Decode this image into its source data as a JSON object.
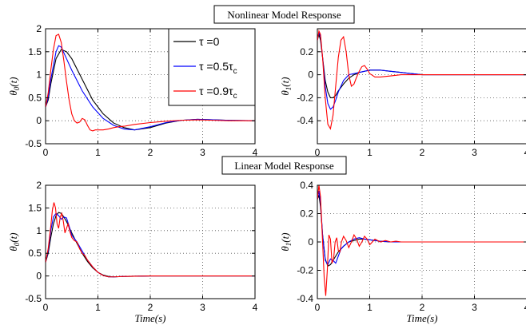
{
  "titles": {
    "top": "Nonlinear Model Response",
    "bottom": "Linear Model Response"
  },
  "legend": {
    "entries": [
      {
        "label": "τ =0",
        "color": "#000000"
      },
      {
        "label": "τ =0.5τ",
        "sub": "c",
        "color": "#0000ff"
      },
      {
        "label": "τ =0.9τ",
        "sub": "c",
        "color": "#ff0000"
      }
    ]
  },
  "chart_data": [
    {
      "id": "nonlinear-theta0",
      "type": "line",
      "title": "Nonlinear Model Response",
      "ylabel": "θ0(t)",
      "ylabel_main": "θ",
      "ylabel_sub": "0",
      "ylabel_tail": "(t)",
      "xlabel": "",
      "xlim": [
        0,
        4
      ],
      "ylim": [
        -0.5,
        2
      ],
      "xticks": [
        0,
        1,
        2,
        3,
        4
      ],
      "xticklabels": [
        "0",
        "1",
        "2",
        "3",
        "4"
      ],
      "yticks": [
        -0.5,
        0,
        0.5,
        1,
        1.5,
        2
      ],
      "yticklabels": [
        "-0.5",
        "0",
        "0.5",
        "1",
        "1.5",
        "2"
      ],
      "grid": true,
      "series": [
        {
          "name": "τ =0",
          "color": "#000000",
          "x": [
            0,
            0.05,
            0.1,
            0.2,
            0.3,
            0.4,
            0.5,
            0.7,
            0.9,
            1.1,
            1.3,
            1.5,
            1.7,
            2.0,
            2.3,
            2.6,
            2.9,
            3.2,
            3.5,
            4.0
          ],
          "y": [
            0.3,
            0.45,
            0.8,
            1.35,
            1.55,
            1.5,
            1.35,
            0.9,
            0.45,
            0.15,
            -0.05,
            -0.15,
            -0.2,
            -0.15,
            -0.05,
            0.01,
            0.03,
            0.02,
            0.01,
            0.0
          ]
        },
        {
          "name": "τ =0.5τc",
          "color": "#0000ff",
          "x": [
            0,
            0.05,
            0.1,
            0.2,
            0.25,
            0.3,
            0.4,
            0.5,
            0.7,
            0.9,
            1.1,
            1.3,
            1.5,
            1.7,
            2.0,
            2.3,
            2.6,
            2.9,
            3.2,
            3.5,
            4.0
          ],
          "y": [
            0.3,
            0.5,
            0.9,
            1.5,
            1.63,
            1.6,
            1.35,
            1.1,
            0.65,
            0.3,
            0.05,
            -0.1,
            -0.18,
            -0.2,
            -0.13,
            -0.04,
            0.01,
            0.03,
            0.02,
            0.01,
            0.0
          ]
        },
        {
          "name": "τ =0.9τc",
          "color": "#ff0000",
          "x": [
            0,
            0.05,
            0.1,
            0.15,
            0.2,
            0.25,
            0.3,
            0.35,
            0.4,
            0.45,
            0.5,
            0.55,
            0.6,
            0.65,
            0.7,
            0.75,
            0.8,
            0.85,
            0.9,
            0.95,
            1.0,
            1.1,
            1.2,
            1.3,
            1.4,
            1.5,
            1.7,
            2.0,
            2.3,
            2.6,
            2.9,
            3.2,
            3.5,
            4.0
          ],
          "y": [
            0.3,
            0.6,
            1.1,
            1.55,
            1.85,
            1.88,
            1.7,
            1.3,
            0.85,
            0.45,
            0.15,
            0.0,
            -0.05,
            -0.03,
            0.05,
            0.02,
            -0.1,
            -0.2,
            -0.22,
            -0.2,
            -0.2,
            -0.2,
            -0.18,
            -0.15,
            -0.13,
            -0.12,
            -0.08,
            -0.04,
            -0.01,
            0.01,
            0.02,
            0.01,
            0.0,
            0.0
          ]
        }
      ]
    },
    {
      "id": "nonlinear-theta1",
      "type": "line",
      "title": "Nonlinear Model Response",
      "ylabel": "θ1(t)",
      "ylabel_main": "θ",
      "ylabel_sub": "1",
      "ylabel_tail": "(t)",
      "xlabel": "",
      "xlim": [
        0,
        4
      ],
      "ylim": [
        -0.6,
        0.4
      ],
      "xticks": [
        0,
        1,
        2,
        3,
        4
      ],
      "xticklabels": [
        "0",
        "1",
        "2",
        "3",
        "4"
      ],
      "yticks": [
        -0.4,
        -0.2,
        0,
        0.2
      ],
      "yticklabels": [
        "-0.4",
        "-0.2",
        "0",
        "0.2"
      ],
      "grid": true,
      "series": [
        {
          "name": "τ =0",
          "color": "#000000",
          "x": [
            0,
            0.03,
            0.06,
            0.1,
            0.15,
            0.2,
            0.25,
            0.3,
            0.35,
            0.4,
            0.5,
            0.6,
            0.7,
            0.8,
            1.0,
            1.2,
            1.4,
            1.6,
            1.8,
            2.0,
            2.5,
            3.0,
            3.5,
            4.0
          ],
          "y": [
            0.3,
            0.35,
            0.3,
            0.15,
            -0.05,
            -0.15,
            -0.2,
            -0.2,
            -0.18,
            -0.14,
            -0.08,
            -0.03,
            0.0,
            0.02,
            0.04,
            0.04,
            0.03,
            0.02,
            0.01,
            0.0,
            0.0,
            0.0,
            0.0,
            0.0
          ]
        },
        {
          "name": "τ =0.5τc",
          "color": "#0000ff",
          "x": [
            0,
            0.03,
            0.06,
            0.1,
            0.15,
            0.2,
            0.25,
            0.3,
            0.35,
            0.4,
            0.5,
            0.6,
            0.7,
            0.8,
            1.0,
            1.2,
            1.4,
            1.6,
            1.8,
            2.0,
            2.5,
            3.0,
            3.5,
            4.0
          ],
          "y": [
            0.3,
            0.37,
            0.33,
            0.15,
            -0.1,
            -0.25,
            -0.3,
            -0.28,
            -0.22,
            -0.15,
            -0.05,
            0.0,
            0.01,
            0.02,
            0.04,
            0.04,
            0.03,
            0.02,
            0.01,
            0.0,
            0.0,
            0.0,
            0.0,
            0.0
          ]
        },
        {
          "name": "τ =0.9τc",
          "color": "#ff0000",
          "x": [
            0,
            0.03,
            0.06,
            0.1,
            0.15,
            0.2,
            0.25,
            0.3,
            0.35,
            0.4,
            0.45,
            0.5,
            0.55,
            0.6,
            0.65,
            0.7,
            0.75,
            0.8,
            0.85,
            0.9,
            0.95,
            1.0,
            1.1,
            1.2,
            1.4,
            1.6,
            1.8,
            2.0,
            2.5,
            3.0,
            3.5,
            4.0
          ],
          "y": [
            0.3,
            0.38,
            0.35,
            0.15,
            -0.2,
            -0.43,
            -0.47,
            -0.35,
            -0.1,
            0.15,
            0.3,
            0.33,
            0.2,
            0.0,
            -0.1,
            -0.08,
            -0.02,
            0.03,
            0.07,
            0.08,
            0.05,
            0.01,
            -0.02,
            -0.02,
            -0.01,
            0.0,
            0.0,
            0.0,
            0.0,
            0.0,
            0.0,
            0.0
          ]
        }
      ]
    },
    {
      "id": "linear-theta0",
      "type": "line",
      "title": "Linear Model Response",
      "ylabel": "θ0(t)",
      "ylabel_main": "θ",
      "ylabel_sub": "0",
      "ylabel_tail": "(t)",
      "xlabel": "Time(s)",
      "xlim": [
        0,
        4
      ],
      "ylim": [
        -0.5,
        2
      ],
      "xticks": [
        0,
        1,
        2,
        3,
        4
      ],
      "xticklabels": [
        "0",
        "1",
        "2",
        "3",
        "4"
      ],
      "yticks": [
        -0.5,
        0,
        0.5,
        1,
        1.5,
        2
      ],
      "yticklabels": [
        "-0.5",
        "0",
        "0.5",
        "1",
        "1.5",
        "2"
      ],
      "grid": true,
      "series": [
        {
          "name": "τ =0",
          "color": "#000000",
          "x": [
            0,
            0.05,
            0.1,
            0.15,
            0.2,
            0.25,
            0.3,
            0.35,
            0.4,
            0.5,
            0.6,
            0.7,
            0.8,
            0.9,
            1.0,
            1.1,
            1.2,
            1.3,
            1.5,
            2.0,
            2.5,
            3.0,
            4.0
          ],
          "y": [
            0.3,
            0.5,
            0.85,
            1.15,
            1.33,
            1.4,
            1.38,
            1.3,
            1.2,
            0.95,
            0.72,
            0.5,
            0.32,
            0.18,
            0.08,
            0.02,
            -0.01,
            -0.02,
            -0.01,
            0.0,
            0.0,
            0.0,
            0.0
          ]
        },
        {
          "name": "τ =0.5τc",
          "color": "#0000ff",
          "x": [
            0,
            0.05,
            0.1,
            0.15,
            0.2,
            0.25,
            0.3,
            0.35,
            0.4,
            0.45,
            0.5,
            0.6,
            0.7,
            0.8,
            0.9,
            1.0,
            1.1,
            1.2,
            1.3,
            1.5,
            2.0,
            2.5,
            3.0,
            4.0
          ],
          "y": [
            0.3,
            0.55,
            1.0,
            1.3,
            1.38,
            1.33,
            1.25,
            1.3,
            1.28,
            1.1,
            0.9,
            0.75,
            0.55,
            0.35,
            0.2,
            0.08,
            0.01,
            -0.02,
            -0.02,
            -0.01,
            0.0,
            0.0,
            0.0,
            0.0
          ]
        },
        {
          "name": "τ =0.9τc",
          "color": "#ff0000",
          "x": [
            0,
            0.05,
            0.1,
            0.13,
            0.16,
            0.19,
            0.22,
            0.25,
            0.28,
            0.31,
            0.34,
            0.37,
            0.4,
            0.43,
            0.46,
            0.5,
            0.55,
            0.6,
            0.65,
            0.7,
            0.75,
            0.8,
            0.9,
            1.0,
            1.1,
            1.2,
            1.3,
            1.5,
            2.0,
            2.5,
            3.0,
            4.0
          ],
          "y": [
            0.3,
            0.6,
            1.1,
            1.45,
            1.62,
            1.5,
            1.15,
            1.05,
            1.3,
            1.38,
            1.2,
            0.95,
            1.05,
            1.15,
            1.0,
            0.85,
            0.78,
            0.75,
            0.6,
            0.5,
            0.45,
            0.35,
            0.2,
            0.08,
            0.01,
            -0.02,
            -0.02,
            -0.01,
            0.0,
            0.0,
            0.0,
            0.0
          ]
        }
      ]
    },
    {
      "id": "linear-theta1",
      "type": "line",
      "title": "Linear Model Response",
      "ylabel": "θ1(t)",
      "ylabel_main": "θ",
      "ylabel_sub": "1",
      "ylabel_tail": "(t)",
      "xlabel": "Time(s)",
      "xlim": [
        0,
        4
      ],
      "ylim": [
        -0.4,
        0.4
      ],
      "xticks": [
        0,
        1,
        2,
        3,
        4
      ],
      "xticklabels": [
        "0",
        "1",
        "2",
        "3",
        "4"
      ],
      "yticks": [
        -0.4,
        -0.2,
        0,
        0.2,
        0.4
      ],
      "yticklabels": [
        "-0.4",
        "-0.2",
        "0",
        "0.2",
        "0.4"
      ],
      "grid": true,
      "series": [
        {
          "name": "τ =0",
          "color": "#000000",
          "x": [
            0,
            0.03,
            0.06,
            0.1,
            0.15,
            0.2,
            0.25,
            0.3,
            0.35,
            0.4,
            0.5,
            0.6,
            0.7,
            0.8,
            0.9,
            1.0,
            1.1,
            1.2,
            1.4,
            1.6,
            2.0,
            2.5,
            3.0,
            4.0
          ],
          "y": [
            0.3,
            0.33,
            0.25,
            0.05,
            -0.12,
            -0.17,
            -0.16,
            -0.13,
            -0.1,
            -0.07,
            -0.03,
            0.0,
            0.01,
            0.02,
            0.02,
            0.015,
            0.01,
            0.005,
            0.0,
            0.0,
            0.0,
            0.0,
            0.0,
            0.0
          ]
        },
        {
          "name": "τ =0.5τc",
          "color": "#0000ff",
          "x": [
            0,
            0.03,
            0.06,
            0.1,
            0.15,
            0.2,
            0.25,
            0.3,
            0.35,
            0.4,
            0.45,
            0.5,
            0.6,
            0.7,
            0.8,
            0.9,
            1.0,
            1.1,
            1.2,
            1.4,
            1.6,
            2.0,
            2.5,
            3.0,
            4.0
          ],
          "y": [
            0.3,
            0.36,
            0.28,
            0.05,
            -0.13,
            -0.16,
            -0.12,
            -0.13,
            -0.15,
            -0.1,
            -0.05,
            -0.03,
            0.0,
            0.02,
            0.03,
            0.02,
            0.015,
            0.01,
            0.005,
            0.0,
            0.0,
            0.0,
            0.0,
            0.0,
            0.0
          ]
        },
        {
          "name": "τ =0.9τc",
          "color": "#ff0000",
          "x": [
            0,
            0.03,
            0.06,
            0.1,
            0.13,
            0.16,
            0.19,
            0.22,
            0.25,
            0.28,
            0.31,
            0.34,
            0.37,
            0.4,
            0.43,
            0.46,
            0.5,
            0.55,
            0.6,
            0.65,
            0.7,
            0.75,
            0.8,
            0.85,
            0.9,
            0.95,
            1.0,
            1.1,
            1.2,
            1.3,
            1.4,
            1.5,
            1.6,
            1.8,
            2.0,
            2.5,
            3.0,
            4.0
          ],
          "y": [
            0.3,
            0.4,
            0.32,
            0.0,
            -0.25,
            -0.38,
            -0.2,
            0.05,
            0.02,
            -0.15,
            -0.12,
            0.0,
            0.03,
            -0.06,
            -0.07,
            0.0,
            0.04,
            0.01,
            -0.04,
            0.0,
            0.05,
            0.02,
            -0.03,
            0.0,
            0.04,
            0.02,
            -0.02,
            0.02,
            0.0,
            0.01,
            0.0,
            0.005,
            0.0,
            0.0,
            0.0,
            0.0,
            0.0,
            0.0
          ]
        }
      ]
    }
  ]
}
